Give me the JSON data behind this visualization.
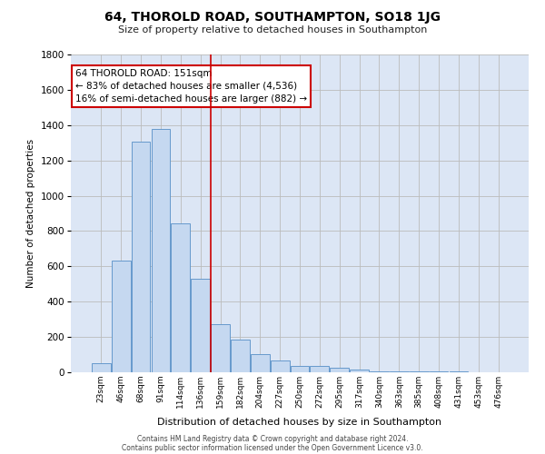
{
  "title": "64, THOROLD ROAD, SOUTHAMPTON, SO18 1JG",
  "subtitle": "Size of property relative to detached houses in Southampton",
  "xlabel": "Distribution of detached houses by size in Southampton",
  "ylabel": "Number of detached properties",
  "categories": [
    "23sqm",
    "46sqm",
    "68sqm",
    "91sqm",
    "114sqm",
    "136sqm",
    "159sqm",
    "182sqm",
    "204sqm",
    "227sqm",
    "250sqm",
    "272sqm",
    "295sqm",
    "317sqm",
    "340sqm",
    "363sqm",
    "385sqm",
    "408sqm",
    "431sqm",
    "453sqm",
    "476sqm"
  ],
  "values": [
    50,
    635,
    1305,
    1380,
    845,
    530,
    275,
    185,
    105,
    65,
    38,
    35,
    28,
    18,
    5,
    5,
    5,
    5,
    5,
    0,
    0
  ],
  "bar_color": "#c5d8f0",
  "bar_edge_color": "#6699cc",
  "grid_color": "#bbbbbb",
  "fig_bg_color": "#ffffff",
  "plot_bg_color": "#dce6f5",
  "red_line_x": 5.5,
  "annotation_text": "64 THOROLD ROAD: 151sqm\n← 83% of detached houses are smaller (4,536)\n16% of semi-detached houses are larger (882) →",
  "annotation_box_color": "#ffffff",
  "annotation_box_edge": "#cc0000",
  "red_line_color": "#cc0000",
  "ylim": [
    0,
    1800
  ],
  "yticks": [
    0,
    200,
    400,
    600,
    800,
    1000,
    1200,
    1400,
    1600,
    1800
  ],
  "footer1": "Contains HM Land Registry data © Crown copyright and database right 2024.",
  "footer2": "Contains public sector information licensed under the Open Government Licence v3.0."
}
